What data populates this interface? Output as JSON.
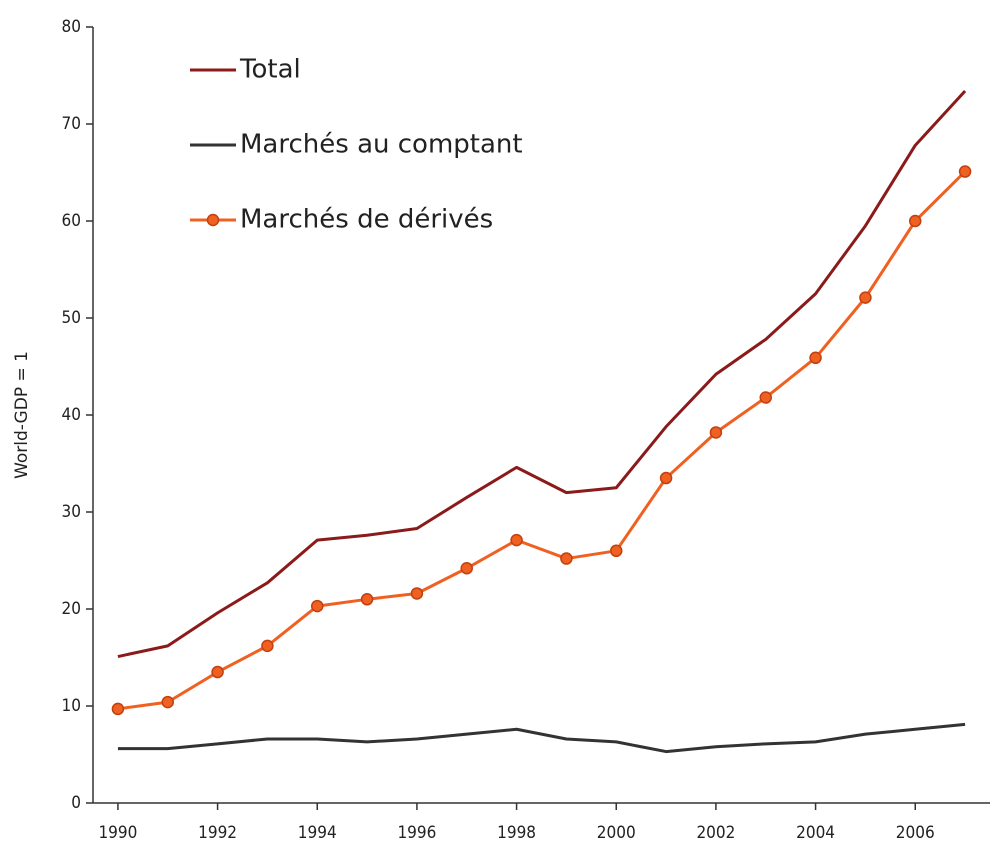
{
  "chart_data": {
    "type": "line",
    "ylabel": "World-GDP = 1",
    "x": [
      1990,
      1991,
      1992,
      1993,
      1994,
      1995,
      1996,
      1997,
      1998,
      1999,
      2000,
      2001,
      2002,
      2003,
      2004,
      2005,
      2006,
      2007
    ],
    "series": [
      {
        "name": "Total",
        "color": "#8b1a1a",
        "values": [
          15.1,
          16.2,
          19.6,
          22.7,
          27.1,
          27.6,
          28.3,
          31.5,
          34.6,
          32.0,
          32.5,
          38.8,
          44.2,
          47.8,
          52.5,
          59.5,
          67.8,
          73.4
        ]
      },
      {
        "name": "Marchés au comptant",
        "color": "#333333",
        "values": [
          5.6,
          5.6,
          6.1,
          6.6,
          6.6,
          6.3,
          6.6,
          7.1,
          7.6,
          6.6,
          6.3,
          5.3,
          5.8,
          6.1,
          6.3,
          7.1,
          7.6,
          8.1
        ]
      },
      {
        "name": "Marchés de dérivés",
        "color": "#f06020",
        "marker": "o",
        "values": [
          9.7,
          10.4,
          13.5,
          16.2,
          20.3,
          21.0,
          21.6,
          24.2,
          27.1,
          25.2,
          26.0,
          33.5,
          38.2,
          41.8,
          45.9,
          52.1,
          60.0,
          65.1
        ]
      }
    ],
    "xlim": [
      1989.5,
      2007.5
    ],
    "xticks": [
      1990,
      1992,
      1994,
      1996,
      1998,
      2000,
      2002,
      2004,
      2006
    ],
    "ylim": [
      0,
      80
    ],
    "yticks": [
      0,
      10,
      20,
      30,
      40,
      50,
      60,
      70,
      80
    ],
    "legend": "upper left"
  }
}
